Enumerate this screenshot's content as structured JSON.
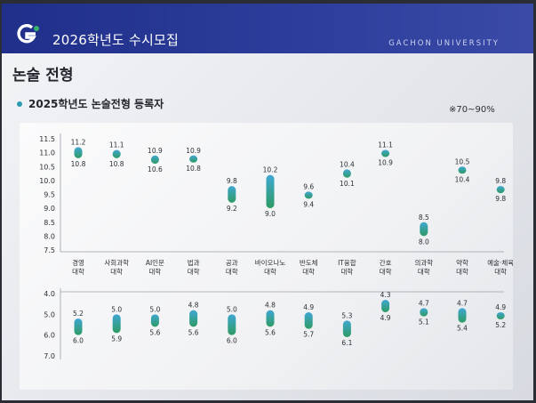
{
  "header": {
    "title": "2026학년도 수시모집",
    "university": "GACHON UNIVERSITY"
  },
  "page_title": "논술 전형",
  "subtitle": "2025학년도 논술전형 등록자",
  "range_note": "※70~90%",
  "colors": {
    "header_bg": "#2536a0",
    "bar_top": "#3fa7d3",
    "bar_bottom": "#2f9b63",
    "accent_dot": "#2a9bb0"
  },
  "chart_data": [
    {
      "type": "range-bar",
      "y_ticks": [
        "11.5",
        "11.0",
        "10.5",
        "10.0",
        "9.5",
        "9.0",
        "8.5",
        "8.0",
        "7.5"
      ],
      "ylim": [
        7.5,
        11.5
      ],
      "categories": [
        [
          "경영",
          "대학"
        ],
        [
          "사회과학",
          "대학"
        ],
        [
          "AI인문",
          "대학"
        ],
        [
          "법과",
          "대학"
        ],
        [
          "공과",
          "대학"
        ],
        [
          "바이오나노",
          "대학"
        ],
        [
          "반도체",
          "대학"
        ],
        [
          "IT융합",
          "대학"
        ],
        [
          "간호",
          "대학"
        ],
        [
          "의과학",
          "대학"
        ],
        [
          "약학",
          "대학"
        ],
        [
          "예술·체육",
          "대학"
        ]
      ],
      "high": [
        "11.2",
        "11.1",
        "10.9",
        "10.9",
        "9.8",
        "10.2",
        "9.6",
        "10.4",
        "11.1",
        "8.5",
        "10.5",
        "9.8"
      ],
      "low": [
        "10.8",
        "10.8",
        "10.6",
        "10.8",
        "9.2",
        "9.0",
        "9.4",
        "10.1",
        "10.9",
        "8.0",
        "10.4",
        "9.8"
      ]
    },
    {
      "type": "range-bar",
      "y_ticks": [
        "4.0",
        "5.0",
        "6.0",
        "7.0"
      ],
      "ylim": [
        4.0,
        7.0
      ],
      "inverted": true,
      "high": [
        "5.2",
        "5.0",
        "5.0",
        "4.8",
        "5.0",
        "4.8",
        "4.9",
        "5.3",
        "4.3",
        "4.7",
        "4.7",
        "4.9"
      ],
      "low": [
        "6.0",
        "5.9",
        "5.6",
        "5.6",
        "6.0",
        "5.6",
        "5.7",
        "6.1",
        "4.9",
        "5.1",
        "5.4",
        "5.2"
      ]
    }
  ]
}
